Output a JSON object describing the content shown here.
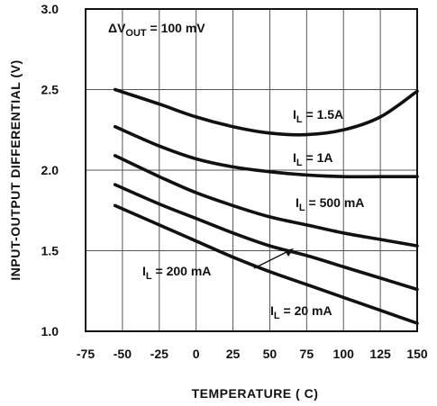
{
  "chart_data": {
    "type": "line",
    "title": "",
    "xlabel": "TEMPERATURE ( C)",
    "ylabel": "INPUT-OUTPUT DIFFERENTIAL (V)",
    "xlim": [
      -75,
      150
    ],
    "ylim": [
      1.0,
      3.0
    ],
    "x_ticks": [
      "-75",
      "-50",
      "-25",
      "0",
      "25",
      "50",
      "75",
      "100",
      "125",
      "150"
    ],
    "y_ticks": [
      "1.0",
      "1.5",
      "2.0",
      "2.5",
      "3.0"
    ],
    "grid": true,
    "condition_label": "ΔV",
    "condition_sub": "OUT",
    "condition_value": " = 100 mV",
    "series": [
      {
        "label_prefix": "I",
        "label_sub": "L",
        "label_value": " = 1.5A",
        "x": [
          -55,
          -25,
          0,
          25,
          50,
          75,
          100,
          125,
          150
        ],
        "y": [
          2.5,
          2.41,
          2.33,
          2.27,
          2.23,
          2.22,
          2.25,
          2.33,
          2.49
        ]
      },
      {
        "label_prefix": "I",
        "label_sub": "L",
        "label_value": " = 1A",
        "x": [
          -55,
          -25,
          0,
          25,
          50,
          75,
          100,
          125,
          150
        ],
        "y": [
          2.27,
          2.15,
          2.07,
          2.02,
          1.99,
          1.97,
          1.96,
          1.96,
          1.96
        ]
      },
      {
        "label_prefix": "I",
        "label_sub": "L",
        "label_value": " = 500 mA",
        "x": [
          -55,
          -25,
          0,
          25,
          50,
          75,
          100,
          125,
          150
        ],
        "y": [
          2.09,
          1.96,
          1.86,
          1.78,
          1.71,
          1.66,
          1.61,
          1.57,
          1.53
        ]
      },
      {
        "label_prefix": "I",
        "label_sub": "L",
        "label_value": " = 200 mA",
        "x": [
          -55,
          -25,
          0,
          25,
          50,
          75,
          100,
          125,
          150
        ],
        "y": [
          1.91,
          1.79,
          1.7,
          1.61,
          1.53,
          1.47,
          1.4,
          1.33,
          1.26
        ]
      },
      {
        "label_prefix": "I",
        "label_sub": "L",
        "label_value": " = 20 mA",
        "x": [
          -55,
          -25,
          0,
          25,
          50,
          75,
          100,
          125,
          150
        ],
        "y": [
          1.78,
          1.66,
          1.56,
          1.46,
          1.37,
          1.29,
          1.21,
          1.13,
          1.05
        ]
      }
    ]
  }
}
